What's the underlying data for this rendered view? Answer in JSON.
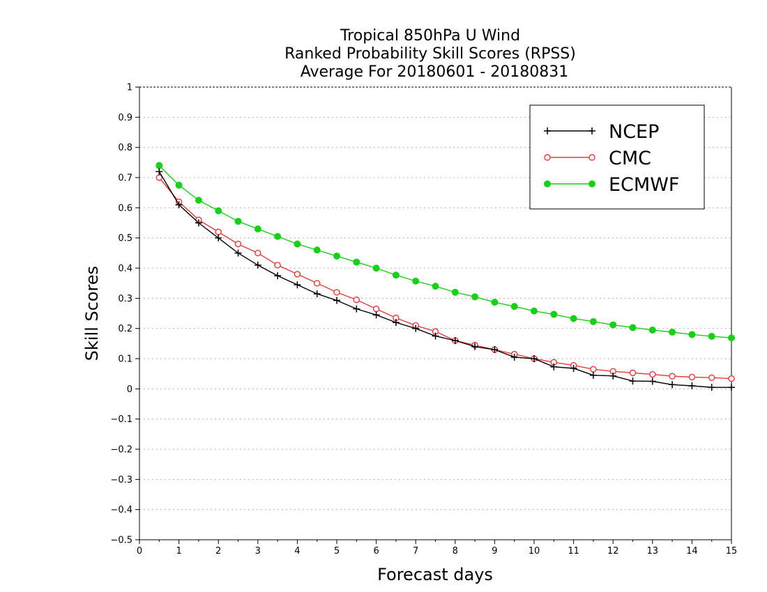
{
  "chart_data": {
    "type": "line",
    "title_lines": [
      "Tropical 850hPa U Wind",
      "Ranked Probability Skill Scores (RPSS)",
      "Average For 20180601 - 20180831"
    ],
    "xlabel": "Forecast days",
    "ylabel": "Skill Scores",
    "xlim": [
      0,
      15
    ],
    "ylim": [
      -0.5,
      1
    ],
    "x_ticks": [
      0,
      1,
      2,
      3,
      4,
      5,
      6,
      7,
      8,
      9,
      10,
      11,
      12,
      13,
      14,
      15
    ],
    "x_tick_labels": [
      "0",
      "1",
      "2",
      "3",
      "4",
      "5",
      "6",
      "7",
      "8",
      "9",
      "10",
      "11",
      "12",
      "13",
      "14",
      "15"
    ],
    "y_ticks": [
      -0.5,
      -0.4,
      -0.3,
      -0.2,
      -0.1,
      0,
      0.1,
      0.2,
      0.3,
      0.4,
      0.5,
      0.6,
      0.7,
      0.8,
      0.9,
      1
    ],
    "y_tick_labels": [
      "−0.5",
      "−0.4",
      "−0.3",
      "−0.2",
      "−0.1",
      "0",
      "0.1",
      "0.2",
      "0.3",
      "0.4",
      "0.5",
      "0.6",
      "0.7",
      "0.8",
      "0.9",
      "1"
    ],
    "grid": "horizontal-dotted",
    "legend_position": "top-right",
    "x": [
      0.5,
      1.0,
      1.5,
      2.0,
      2.5,
      3.0,
      3.5,
      4.0,
      4.5,
      5.0,
      5.5,
      6.0,
      6.5,
      7.0,
      7.5,
      8.0,
      8.5,
      9.0,
      9.5,
      10.0,
      10.5,
      11.0,
      11.5,
      12.0,
      12.5,
      13.0,
      13.5,
      14.0,
      14.5,
      15.0
    ],
    "series": [
      {
        "name": "NCEP",
        "color": "#000000",
        "marker": "plus",
        "values": [
          0.72,
          0.61,
          0.55,
          0.5,
          0.45,
          0.41,
          0.375,
          0.345,
          0.315,
          0.293,
          0.265,
          0.245,
          0.22,
          0.2,
          0.175,
          0.16,
          0.14,
          0.13,
          0.105,
          0.1,
          0.073,
          0.068,
          0.045,
          0.043,
          0.026,
          0.025,
          0.014,
          0.01,
          0.005,
          0.005
        ]
      },
      {
        "name": "CMC",
        "color": "#e83a3a",
        "marker": "open-circle",
        "values": [
          0.7,
          0.62,
          0.56,
          0.52,
          0.48,
          0.45,
          0.41,
          0.38,
          0.35,
          0.32,
          0.295,
          0.265,
          0.235,
          0.21,
          0.19,
          0.16,
          0.145,
          0.13,
          0.115,
          0.1,
          0.088,
          0.078,
          0.065,
          0.058,
          0.053,
          0.048,
          0.042,
          0.039,
          0.037,
          0.034
        ]
      },
      {
        "name": "ECMWF",
        "color": "#17d117",
        "marker": "filled-circle",
        "values": [
          0.74,
          0.675,
          0.625,
          0.59,
          0.555,
          0.53,
          0.505,
          0.48,
          0.46,
          0.44,
          0.42,
          0.4,
          0.377,
          0.357,
          0.34,
          0.32,
          0.305,
          0.287,
          0.273,
          0.258,
          0.247,
          0.233,
          0.223,
          0.212,
          0.203,
          0.195,
          0.188,
          0.18,
          0.174,
          0.169
        ]
      }
    ]
  }
}
